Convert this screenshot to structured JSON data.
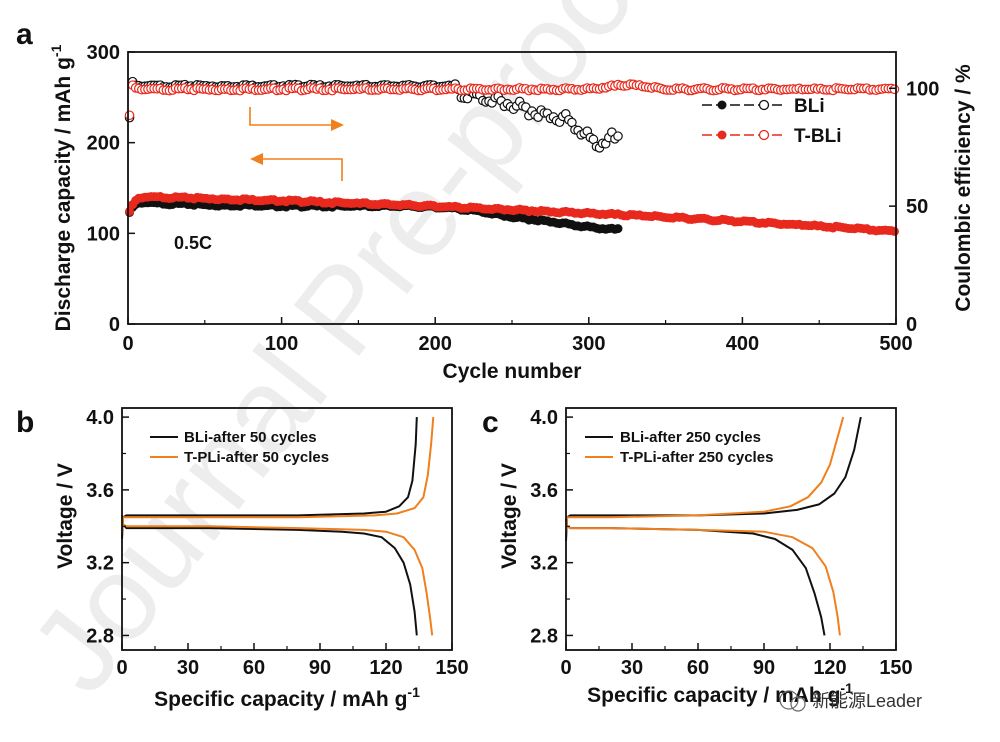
{
  "panels": {
    "a": "a",
    "b": "b",
    "c": "c"
  },
  "watermark": {
    "background_text": "Journal Pre-proof",
    "credit": "新能源Leader"
  },
  "colors": {
    "bli": "#111111",
    "tbli": "#e8291d",
    "orange": "#f07f1e",
    "arrow": "#f07f1e"
  },
  "chart_data": [
    {
      "type": "scatter",
      "panel": "a",
      "xlabel": "Cycle number",
      "ylabel": "Discharge capacity / mAh g",
      "ylabel_sup": "-1",
      "ylabel_right": "Coulombic efficiency / %",
      "xlim": [
        0,
        500
      ],
      "ylim": [
        0,
        300
      ],
      "ylim_right": [
        0,
        115.4
      ],
      "xticks": [
        "0",
        "100",
        "200",
        "300",
        "400",
        "500"
      ],
      "yticks": [
        "0",
        "100",
        "200",
        "300"
      ],
      "yticks_right": [
        "0",
        "50",
        "100"
      ],
      "legend": [
        "BLi",
        "T-BLi"
      ],
      "legend_position": "top-right",
      "annotation": "0.5C",
      "series": [
        {
          "name": "BLi",
          "kind": "capacity",
          "x": [
            1,
            3,
            6,
            10,
            20,
            40,
            60,
            80,
            100,
            120,
            140,
            160,
            180,
            200,
            210,
            220,
            230,
            240,
            250,
            260,
            270,
            280,
            290,
            300,
            310,
            320
          ],
          "y": [
            122,
            128,
            133,
            134,
            133,
            132,
            131,
            131,
            130,
            130,
            130,
            130,
            130,
            129,
            128,
            126,
            124,
            121,
            118,
            116,
            114,
            112,
            109,
            107,
            105,
            104
          ]
        },
        {
          "name": "T-BLi",
          "kind": "capacity",
          "x": [
            1,
            3,
            6,
            10,
            20,
            40,
            60,
            80,
            100,
            150,
            200,
            250,
            300,
            350,
            400,
            450,
            500
          ],
          "y": [
            123,
            131,
            138,
            140,
            140,
            139,
            138,
            137,
            136,
            133,
            130,
            126,
            122,
            118,
            113,
            108,
            102
          ]
        },
        {
          "name": "BLi",
          "kind": "efficiency",
          "x": [
            1,
            2,
            4,
            10,
            30,
            60,
            100,
            150,
            200,
            210,
            215,
            220,
            230,
            240,
            250,
            260,
            270,
            280,
            285,
            290,
            295,
            300,
            305,
            310,
            315,
            320
          ],
          "y": [
            87,
            104,
            101,
            101,
            101,
            101,
            101,
            101,
            101,
            101,
            99,
            97,
            96,
            95,
            93,
            91,
            89,
            88,
            87,
            84,
            82,
            79,
            76,
            77,
            79,
            77
          ]
        },
        {
          "name": "T-BLi",
          "kind": "efficiency",
          "x": [
            1,
            2,
            4,
            10,
            50,
            100,
            150,
            200,
            250,
            300,
            325,
            350,
            400,
            450,
            500
          ],
          "y": [
            88,
            102,
            100,
            99.6,
            99.6,
            99.6,
            99.6,
            99.6,
            99.6,
            99.6,
            101.5,
            99.6,
            99.6,
            99.6,
            99.6
          ]
        }
      ]
    },
    {
      "type": "line",
      "panel": "b",
      "xlabel": "Specific capacity / mAh g",
      "xlabel_sup": "-1",
      "ylabel": "Voltage / V",
      "xlim": [
        0,
        150
      ],
      "ylim": [
        2.72,
        4.05
      ],
      "xticks": [
        "0",
        "30",
        "60",
        "90",
        "120",
        "150"
      ],
      "yticks": [
        "2.8",
        "3.2",
        "3.6",
        "4.0"
      ],
      "legend": [
        "BLi-after 50 cycles",
        "T-PLi-after 50 cycles"
      ],
      "legend_position": "top-left",
      "series": [
        {
          "name": "BLi-after 50 cycles",
          "branch": "charge",
          "x": [
            0,
            0.5,
            2,
            10,
            40,
            80,
            110,
            120,
            126,
            130,
            132,
            133.5,
            134
          ],
          "y": [
            3.33,
            3.45,
            3.46,
            3.46,
            3.46,
            3.46,
            3.47,
            3.48,
            3.51,
            3.56,
            3.65,
            3.85,
            4.0
          ]
        },
        {
          "name": "BLi-after 50 cycles",
          "branch": "discharge",
          "x": [
            0,
            0.5,
            2,
            10,
            40,
            80,
            100,
            110,
            118,
            124,
            128,
            131,
            133,
            134
          ],
          "y": [
            3.46,
            3.41,
            3.39,
            3.39,
            3.39,
            3.38,
            3.37,
            3.36,
            3.34,
            3.28,
            3.2,
            3.08,
            2.93,
            2.8
          ]
        },
        {
          "name": "T-PLi-after 50 cycles",
          "branch": "charge",
          "x": [
            0,
            0.5,
            2,
            10,
            40,
            80,
            115,
            125,
            133,
            137,
            139,
            140.5,
            141.5
          ],
          "y": [
            3.36,
            3.45,
            3.45,
            3.45,
            3.45,
            3.45,
            3.46,
            3.47,
            3.5,
            3.56,
            3.68,
            3.85,
            4.0
          ]
        },
        {
          "name": "T-PLi-after 50 cycles",
          "branch": "discharge",
          "x": [
            0,
            0.5,
            2,
            10,
            40,
            80,
            110,
            120,
            128,
            133,
            136.5,
            138.5,
            140,
            141
          ],
          "y": [
            3.45,
            3.41,
            3.4,
            3.4,
            3.4,
            3.39,
            3.38,
            3.37,
            3.34,
            3.27,
            3.17,
            3.03,
            2.9,
            2.8
          ]
        }
      ]
    },
    {
      "type": "line",
      "panel": "c",
      "xlabel": "Specific capacity / mAh g",
      "xlabel_sup": "-1",
      "ylabel": "Voltage / V",
      "xlim": [
        0,
        150
      ],
      "ylim": [
        2.72,
        4.05
      ],
      "xticks": [
        "0",
        "30",
        "60",
        "90",
        "120",
        "150"
      ],
      "yticks": [
        "2.8",
        "3.2",
        "3.6",
        "4.0"
      ],
      "legend": [
        "BLi-after 250 cycles",
        "T-PLi-after 250 cycles"
      ],
      "legend_position": "top-left",
      "series": [
        {
          "name": "BLi-after 250 cycles",
          "branch": "charge",
          "x": [
            0,
            0.5,
            2,
            20,
            60,
            90,
            105,
            115,
            122,
            127,
            131,
            134
          ],
          "y": [
            3.32,
            3.45,
            3.46,
            3.46,
            3.46,
            3.47,
            3.49,
            3.52,
            3.58,
            3.67,
            3.82,
            4.0
          ]
        },
        {
          "name": "BLi-after 250 cycles",
          "branch": "discharge",
          "x": [
            0,
            0.5,
            2,
            20,
            60,
            85,
            95,
            103,
            109,
            113,
            116,
            117.5
          ],
          "y": [
            3.44,
            3.4,
            3.39,
            3.39,
            3.38,
            3.36,
            3.33,
            3.27,
            3.17,
            3.03,
            2.9,
            2.8
          ]
        },
        {
          "name": "T-PLi-after 250 cycles",
          "branch": "charge",
          "x": [
            0,
            0.5,
            2,
            20,
            60,
            90,
            102,
            110,
            116,
            120,
            123,
            126
          ],
          "y": [
            3.36,
            3.45,
            3.45,
            3.45,
            3.46,
            3.48,
            3.51,
            3.56,
            3.64,
            3.74,
            3.87,
            4.0
          ]
        },
        {
          "name": "T-PLi-after 250 cycles",
          "branch": "discharge",
          "x": [
            0,
            0.5,
            2,
            20,
            60,
            90,
            103,
            112,
            118,
            121.5,
            123.5,
            124.5
          ],
          "y": [
            3.43,
            3.4,
            3.39,
            3.39,
            3.38,
            3.37,
            3.34,
            3.28,
            3.18,
            3.04,
            2.9,
            2.8
          ]
        }
      ]
    }
  ]
}
